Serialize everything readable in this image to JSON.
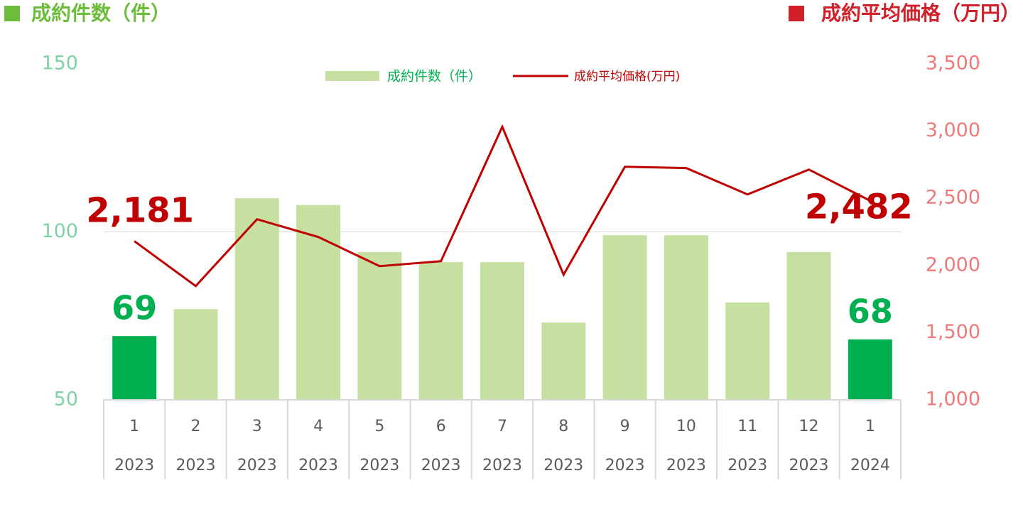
{
  "chart_data": {
    "type": "bar_line",
    "y_label": "成約件数（件）",
    "y2_label": "成約平均価格（万円）",
    "categories": [
      "1",
      "2",
      "3",
      "4",
      "5",
      "6",
      "7",
      "8",
      "9",
      "10",
      "11",
      "12",
      "1"
    ],
    "years": [
      "2023",
      "2023",
      "2023",
      "2023",
      "2023",
      "2023",
      "2023",
      "2023",
      "2023",
      "2023",
      "2023",
      "2023",
      "2024"
    ],
    "ylim": [
      50,
      150
    ],
    "yticks": [
      50,
      100,
      150
    ],
    "y2lim": [
      1000,
      3500
    ],
    "y2ticks": [
      {
        "value": 1000,
        "label": "1,000"
      },
      {
        "value": 1500,
        "label": "1,500"
      },
      {
        "value": 2000,
        "label": "2,000"
      },
      {
        "value": 2500,
        "label": "2,500"
      },
      {
        "value": 3000,
        "label": "3,000"
      },
      {
        "value": 3500,
        "label": "3,500"
      }
    ],
    "grid": true,
    "series": [
      {
        "name": "成約件数（件）",
        "type": "bar",
        "color": "#c5e0a0",
        "colors": [
          "#00b050",
          "#c5e0a0",
          "#c5e0a0",
          "#c5e0a0",
          "#c5e0a0",
          "#c5e0a0",
          "#c5e0a0",
          "#c5e0a0",
          "#c5e0a0",
          "#c5e0a0",
          "#c5e0a0",
          "#c5e0a0",
          "#00b050"
        ],
        "values": [
          69,
          77,
          110,
          108,
          94,
          91,
          91,
          73,
          99,
          99,
          79,
          94,
          68
        ],
        "value_labels": [
          "69",
          null,
          null,
          null,
          null,
          null,
          null,
          null,
          null,
          null,
          null,
          null,
          "68"
        ],
        "label_color": "#00b050"
      },
      {
        "name": "成約平均価格(万円)",
        "type": "line",
        "axis": "y2",
        "color": "#c00000",
        "values": [
          2181,
          1847,
          2344,
          2212,
          1995,
          2032,
          3032,
          1931,
          2735,
          2725,
          2529,
          2714,
          2482
        ],
        "value_labels": [
          "2,181",
          null,
          null,
          null,
          null,
          null,
          null,
          null,
          null,
          null,
          null,
          null,
          "2,482"
        ],
        "label_color": "#c00000"
      }
    ]
  }
}
